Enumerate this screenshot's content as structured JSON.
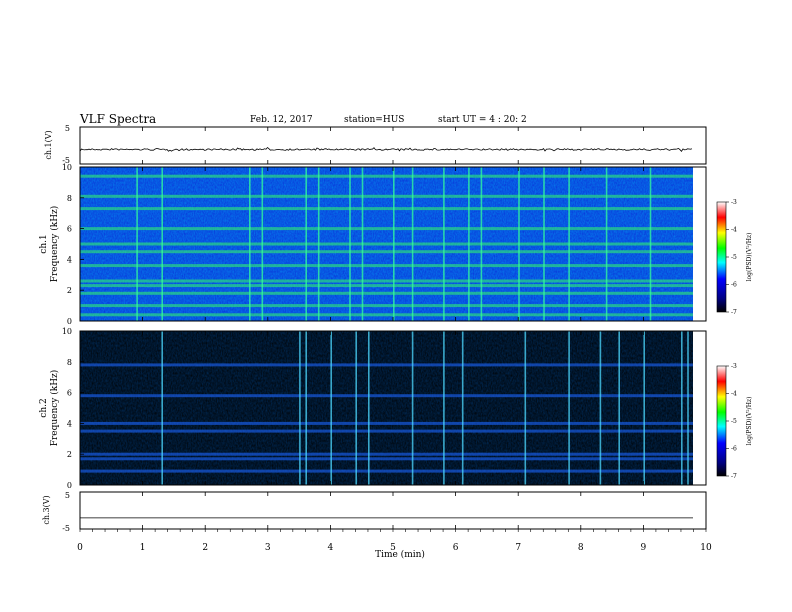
{
  "header": {
    "title": "VLF Spectra",
    "date": "Feb. 12, 2017",
    "station": "station=HUS",
    "start_time": "start  UT =   4 : 20: 2"
  },
  "chart_data": [
    {
      "type": "line",
      "panel": "ch1-waveform",
      "ylabel": "ch.1(V)",
      "ylim": [
        -5,
        5
      ],
      "yticks": [
        "5",
        "-5"
      ],
      "xlim": [
        0,
        10
      ],
      "baseline": 0,
      "trace_color": "#000000"
    },
    {
      "type": "heatmap",
      "panel": "ch1-spectrogram",
      "ylabel": "ch.1\nFrequency (kHz)",
      "ylabel_top": "ch.1",
      "ylabel_bottom": "Frequency (kHz)",
      "ylim": [
        0,
        10
      ],
      "yticks": [
        "0",
        "2",
        "4",
        "6",
        "8",
        "10"
      ],
      "xlim": [
        0,
        10
      ],
      "bands_khz": [
        0.4,
        1.0,
        1.8,
        2.3,
        2.6,
        3.6,
        4.5,
        5.0,
        6.0,
        7.3,
        8.1,
        9.4
      ],
      "spikes_min": [
        0.9,
        1.3,
        2.7,
        2.9,
        3.6,
        3.8,
        4.3,
        4.5,
        5.0,
        5.3,
        5.8,
        6.2,
        6.4,
        7.0,
        7.4,
        7.8,
        8.4,
        9.1
      ]
    },
    {
      "type": "heatmap",
      "panel": "ch2-spectrogram",
      "ylabel": "ch.2\nFrequency (kHz)",
      "ylabel_top": "ch.2",
      "ylabel_bottom": "Frequency (kHz)",
      "ylim": [
        0,
        10
      ],
      "yticks": [
        "0",
        "2",
        "4",
        "6",
        "8",
        "10"
      ],
      "xlim": [
        0,
        10
      ],
      "bands_khz": [
        0.9,
        1.7,
        2.0,
        3.5,
        4.0,
        5.8,
        7.8
      ],
      "spikes_min": [
        1.3,
        3.5,
        3.6,
        4.0,
        4.4,
        4.6,
        5.3,
        5.8,
        6.1,
        7.1,
        7.8,
        8.3,
        8.6,
        9.0,
        9.6,
        9.7
      ]
    },
    {
      "type": "line",
      "panel": "ch3-waveform",
      "ylabel": "ch.3(V)",
      "ylim": [
        -5,
        5
      ],
      "yticks": [
        "5",
        "-5"
      ],
      "xlim": [
        0,
        10
      ],
      "baseline": -2,
      "trace_color": "#000000"
    }
  ],
  "x_axis": {
    "xlabel": "Time (min)",
    "ticks": [
      "0",
      "1",
      "2",
      "3",
      "4",
      "5",
      "6",
      "7",
      "8",
      "9",
      "10"
    ]
  },
  "colorbar": {
    "label": "log(PSD)(V²/Hz)",
    "ticks": [
      "-3",
      "-4",
      "-5",
      "-6",
      "-7"
    ],
    "colors": [
      "#ffffff",
      "#ff0000",
      "#ffff00",
      "#00ff00",
      "#00ffff",
      "#0000ff",
      "#000080",
      "#000000"
    ]
  }
}
